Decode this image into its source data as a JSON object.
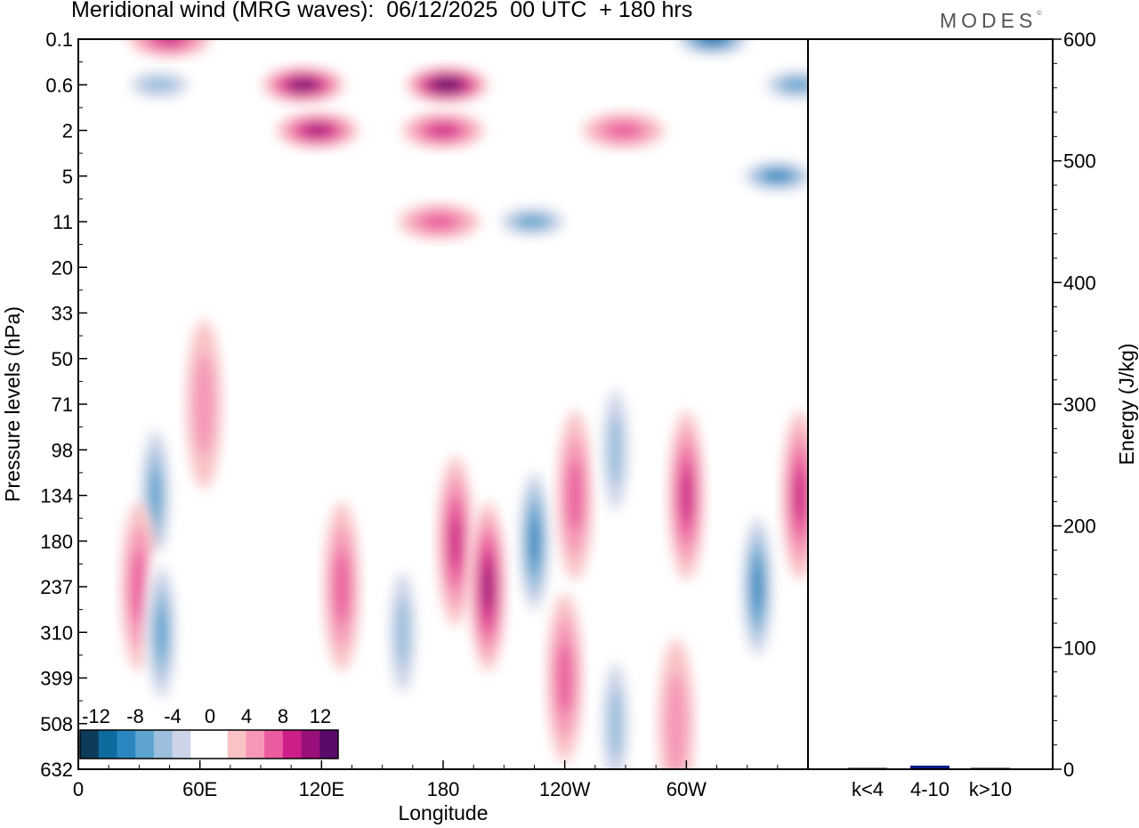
{
  "header": {
    "title": "Meridional wind (MRG waves):  06/12/2025  00 UTC  + 180 hrs",
    "brand": "MODES",
    "brand_mark": "©"
  },
  "chart_data": [
    {
      "type": "heatmap",
      "title": "Meridional wind (MRG waves):  06/12/2025  00 UTC  + 180 hrs",
      "xlabel": "Longitude",
      "ylabel": "Pressure levels (hPa)",
      "x_ticks": [
        "0",
        "60E",
        "120E",
        "180",
        "120W",
        "60W"
      ],
      "x_tick_values": [
        0,
        60,
        120,
        180,
        240,
        300
      ],
      "xlim": [
        0,
        360
      ],
      "y_ticks": [
        "0.1",
        "0.6",
        "2",
        "5",
        "11",
        "20",
        "33",
        "50",
        "71",
        "98",
        "134",
        "180",
        "237",
        "310",
        "399",
        "508",
        "632"
      ],
      "colorbar": {
        "labels": [
          "-12",
          "-8",
          "-4",
          "0",
          "4",
          "8",
          "12"
        ],
        "levels": [
          -14,
          -12,
          -10,
          -8,
          -6,
          -4,
          -2,
          2,
          4,
          6,
          8,
          10,
          12,
          14
        ],
        "colors": [
          "#0d3b5a",
          "#0f6b9e",
          "#2c86c0",
          "#5da4cf",
          "#9bbfdd",
          "#cdd4e8",
          "#ffffff",
          "#ffffff",
          "#f9c2c4",
          "#f597b8",
          "#ea5c9f",
          "#cc1f88",
          "#99107a",
          "#5a0a6b"
        ]
      },
      "features": [
        {
          "lon": 40,
          "level": "0.6",
          "value": -6
        },
        {
          "lon": 45,
          "level": "0.1",
          "value": 8
        },
        {
          "lon": 111,
          "level": "0.6",
          "value": 12
        },
        {
          "lon": 118,
          "level": "2",
          "value": 10
        },
        {
          "lon": 182,
          "level": "0.6",
          "value": 13
        },
        {
          "lon": 180,
          "level": "2",
          "value": 8
        },
        {
          "lon": 178,
          "level": "11",
          "value": 6
        },
        {
          "lon": 224,
          "level": "11",
          "value": -8
        },
        {
          "lon": 269,
          "level": "2",
          "value": 6
        },
        {
          "lon": 313,
          "level": "0.1",
          "value": -12
        },
        {
          "lon": 345,
          "level": "5",
          "value": -10
        },
        {
          "lon": 355,
          "level": "0.6",
          "value": -8
        },
        {
          "lon": 38,
          "level": "134",
          "value": -8
        },
        {
          "lon": 30,
          "level": "237",
          "value": 6
        },
        {
          "lon": 41,
          "level": "310",
          "value": -8
        },
        {
          "lon": 62,
          "level": "71",
          "value": 4
        },
        {
          "lon": 130,
          "level": "237",
          "value": 6
        },
        {
          "lon": 160,
          "level": "310",
          "value": -6
        },
        {
          "lon": 186,
          "level": "180",
          "value": 8
        },
        {
          "lon": 202,
          "level": "237",
          "value": 10
        },
        {
          "lon": 225,
          "level": "180",
          "value": -10
        },
        {
          "lon": 245,
          "level": "134",
          "value": 6
        },
        {
          "lon": 265,
          "level": "98",
          "value": -6
        },
        {
          "lon": 300,
          "level": "134",
          "value": 8
        },
        {
          "lon": 335,
          "level": "237",
          "value": -10
        },
        {
          "lon": 356,
          "level": "134",
          "value": 8
        },
        {
          "lon": 240,
          "level": "399",
          "value": 6
        },
        {
          "lon": 265,
          "level": "508",
          "value": -6
        },
        {
          "lon": 295,
          "level": "508",
          "value": 4
        }
      ]
    },
    {
      "type": "bar",
      "title": "",
      "xlabel": "",
      "ylabel": "Energy (J/kg)",
      "categories": [
        "k<4",
        "4-10",
        "k>10"
      ],
      "values": [
        0.5,
        3,
        0.5
      ],
      "ylim": [
        0,
        600
      ],
      "y_ticks": [
        "0",
        "100",
        "200",
        "300",
        "400",
        "500",
        "600"
      ],
      "colors": [
        "#000000",
        "#0a1a8a",
        "#000000"
      ]
    }
  ]
}
